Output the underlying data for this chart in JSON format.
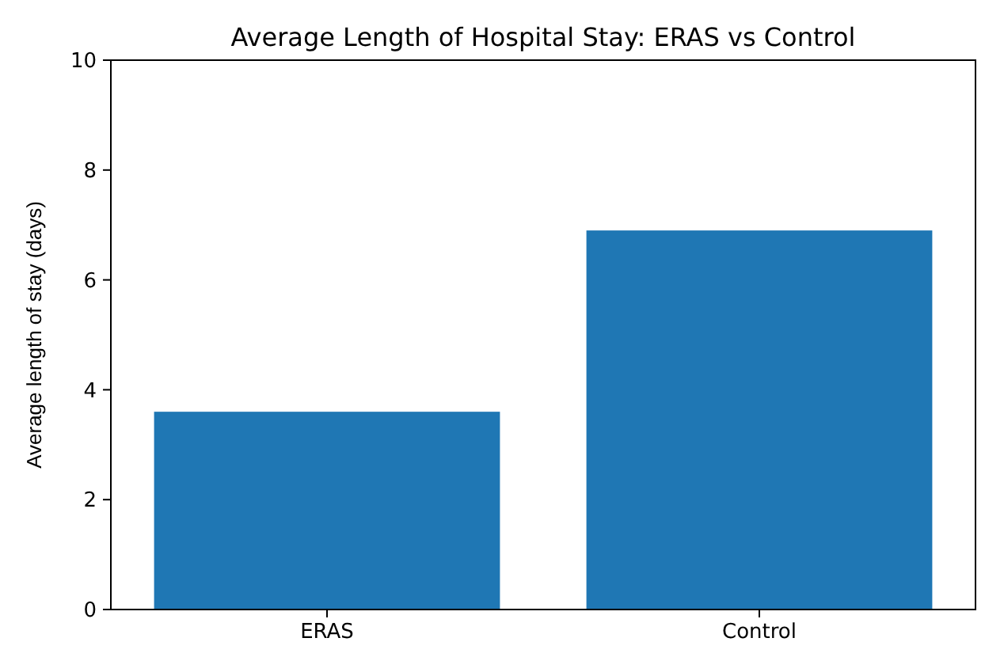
{
  "chart_data": {
    "type": "bar",
    "title": "Average Length of Hospital Stay: ERAS vs Control",
    "ylabel": "Average length of stay (days)",
    "categories": [
      "ERAS",
      "Control"
    ],
    "values": [
      3.6,
      6.9
    ],
    "color": "#1f77b4",
    "ylim": [
      0,
      10
    ],
    "yticks": [
      0,
      2,
      4,
      6,
      8,
      10
    ],
    "grid": false
  }
}
